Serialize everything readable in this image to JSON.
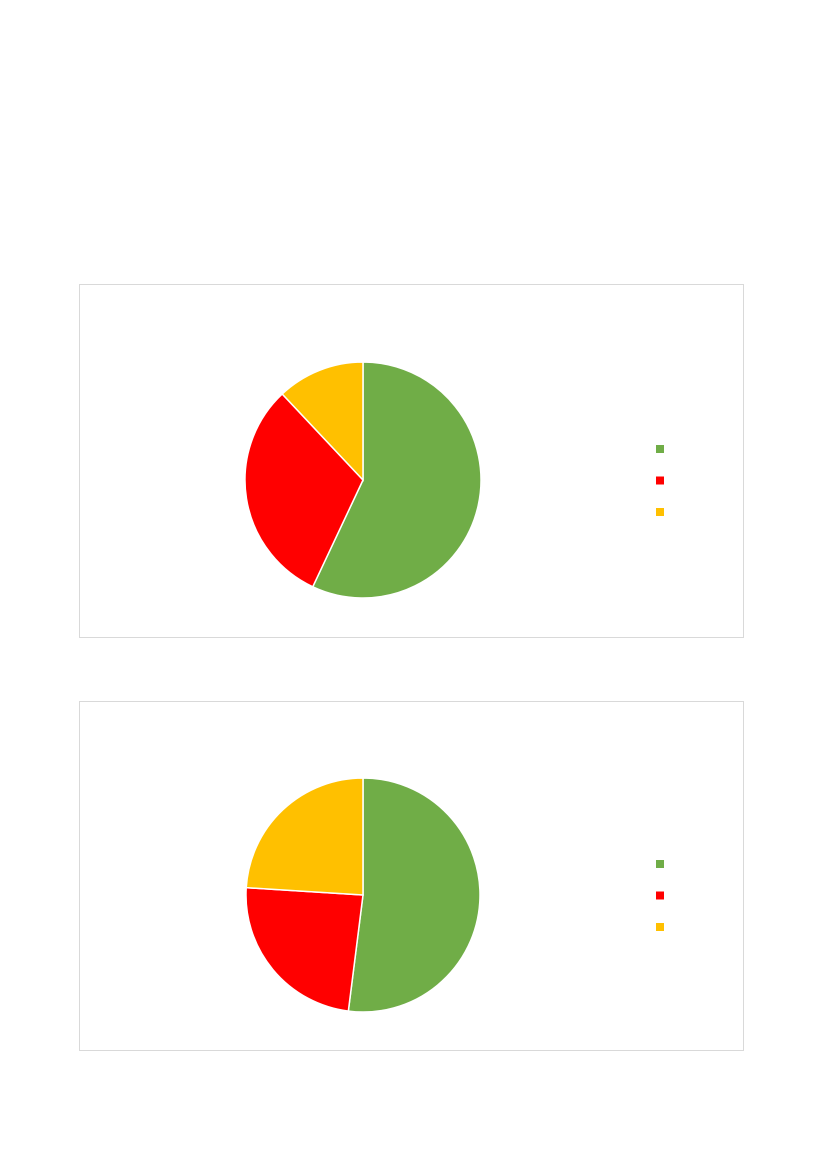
{
  "chart_data": [
    {
      "type": "pie",
      "values": [
        57,
        31,
        12
      ],
      "colors": [
        "#70ad47",
        "#ff0000",
        "#ffc000"
      ]
    },
    {
      "type": "pie",
      "values": [
        52,
        24,
        24
      ],
      "colors": [
        "#70ad47",
        "#ff0000",
        "#ffc000"
      ]
    }
  ]
}
